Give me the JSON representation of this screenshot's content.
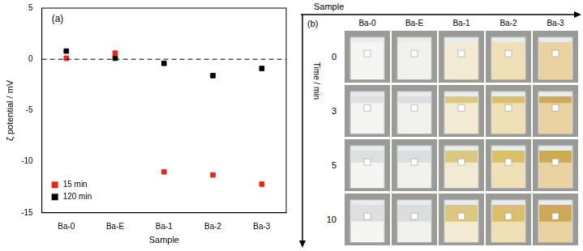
{
  "chart_data": {
    "type": "scatter",
    "title": "(a)",
    "x_label": "Sample",
    "y_label": "ζ potential / mV",
    "categories": [
      "Ba-0",
      "Ba-E",
      "Ba-1",
      "Ba-2",
      "Ba-3"
    ],
    "series": [
      {
        "name": "15 min",
        "color": "#e8251c",
        "marker": "square",
        "values": [
          0.1,
          0.6,
          -11.0,
          -11.3,
          -12.2
        ]
      },
      {
        "name": "120 min",
        "color": "#000000",
        "marker": "square",
        "values": [
          0.8,
          0.1,
          -0.4,
          -1.6,
          -0.9
        ]
      }
    ],
    "reference_line": 0,
    "ylim": [
      -15,
      5
    ],
    "yticks": [
      -15,
      -10,
      -5,
      0,
      5
    ],
    "grid": false,
    "legend": "lower left"
  },
  "panel_b": {
    "label": "(b)",
    "x_title": "Sample",
    "y_title": "Time / min",
    "samples": [
      "Ba-0",
      "Ba-E",
      "Ba-1",
      "Ba-2",
      "Ba-3"
    ],
    "times": [
      0,
      3,
      5,
      10
    ]
  }
}
